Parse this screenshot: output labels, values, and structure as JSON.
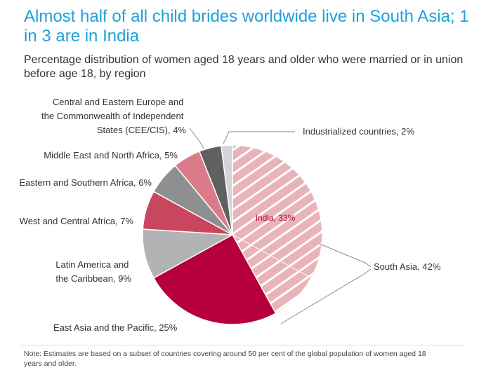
{
  "header": {
    "title": "Almost half of all child brides worldwide live in South Asia; 1 in 3 are in India",
    "subtitle": "Percentage distribution of women aged 18 years and older who were married or in union before age 18, by region"
  },
  "note": "Note: Estimates are based on a subset of countries covering around 50 per cent of the global population of women aged 18 years and older.",
  "chart_data": {
    "type": "pie",
    "title": "Almost half of all child brides worldwide live in South Asia; 1 in 3 are in India",
    "subtitle": "Percentage distribution of women aged 18 years and older who were married or in union before age 18, by region",
    "slices": [
      {
        "label": "South Asia, 42%",
        "value": 42,
        "color": "#e8b4ba",
        "pattern": "hatch"
      },
      {
        "label": "East Asia and the Pacific, 25%",
        "value": 25,
        "color": "#b5003d"
      },
      {
        "label": "Latin America and the Caribbean, 9%",
        "value": 9,
        "color": "#b1b3b5"
      },
      {
        "label": "West and Central Africa, 7%",
        "value": 7,
        "color": "#c8475f"
      },
      {
        "label": "Eastern and Southern Africa, 6%",
        "value": 6,
        "color": "#8e8f91"
      },
      {
        "label": "Middle East and North Africa, 5%",
        "value": 5,
        "color": "#db7a88"
      },
      {
        "label": "Central and Eastern Europe and the Commonwealth of Independent States (CEE/CIS), 4%",
        "value": 4,
        "color": "#5f6062"
      },
      {
        "label": "Industrialized countries, 2%",
        "value": 2,
        "color": "#d3d4d6"
      }
    ],
    "inner_annotation": {
      "label": "India, 33%",
      "value": 33,
      "part_of": "South Asia, 42%"
    },
    "legend": "none"
  }
}
